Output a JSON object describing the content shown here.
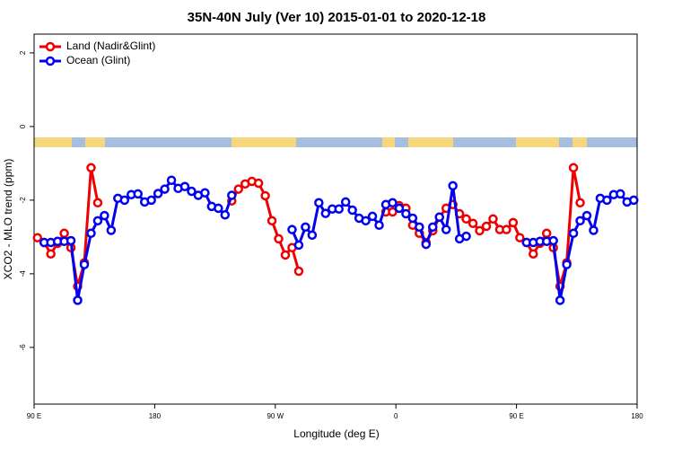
{
  "chart_data": {
    "type": "line",
    "title": "35N-40N July (Ver 10)   2015-01-01 to 2020-12-18",
    "xlabel": "Longitude (deg E)",
    "ylabel": "XCO2 - MLO trend (ppm)",
    "x": [
      92.5,
      97.5,
      102.5,
      107.5,
      112.5,
      117.5,
      122.5,
      127.5,
      132.5,
      137.5,
      142.5,
      147.5,
      152.5,
      157.5,
      162.5,
      167.5,
      172.5,
      177.5,
      182.5,
      187.5,
      192.5,
      197.5,
      202.5,
      207.5,
      212.5,
      217.5,
      222.5,
      227.5,
      232.5,
      237.5,
      242.5,
      247.5,
      252.5,
      257.5,
      262.5,
      267.5,
      272.5,
      277.5,
      282.5,
      287.5,
      292.5,
      297.5,
      302.5,
      307.5,
      312.5,
      317.5,
      322.5,
      327.5,
      332.5,
      337.5,
      342.5,
      347.5,
      352.5,
      357.5,
      362.5,
      367.5,
      372.5,
      377.5,
      382.5,
      387.5,
      392.5,
      397.5,
      402.5,
      407.5,
      412.5,
      417.5,
      422.5,
      427.5,
      432.5,
      437.5,
      442.5,
      447.5,
      452.5,
      457.5,
      462.5,
      467.5,
      472.5,
      477.5,
      482.5,
      487.5,
      492.5,
      497.5,
      502.5,
      507.5,
      512.5,
      517.5,
      522.5,
      527.5,
      532.5,
      537.5
    ],
    "series": [
      {
        "name": "Land (Nadir&Glint)",
        "color": "#ee0000",
        "values": [
          -3.02,
          -3.15,
          -3.46,
          -3.17,
          -2.9,
          -3.29,
          -4.34,
          -3.7,
          -1.12,
          -2.07,
          null,
          null,
          null,
          null,
          null,
          null,
          null,
          null,
          null,
          null,
          null,
          null,
          null,
          null,
          null,
          null,
          null,
          null,
          null,
          -2.02,
          -1.7,
          -1.56,
          -1.49,
          -1.54,
          -1.88,
          -2.56,
          -3.05,
          -3.49,
          -3.29,
          -3.93,
          null,
          null,
          null,
          null,
          null,
          null,
          null,
          null,
          null,
          null,
          null,
          null,
          -2.32,
          -2.32,
          -2.15,
          -2.22,
          -2.68,
          -2.9,
          -3.15,
          -2.83,
          -2.46,
          -2.22,
          -2.12,
          -2.37,
          -2.51,
          -2.63,
          -2.83,
          -2.71,
          -2.51,
          -2.8,
          -2.8,
          -2.61,
          -3.02,
          -3.15,
          -3.46,
          -3.17,
          -2.9,
          -3.29,
          -4.34,
          -3.7,
          -1.12,
          -2.07,
          null,
          null,
          null,
          null,
          null,
          null,
          null,
          null
        ]
      },
      {
        "name": "Ocean (Glint)",
        "color": "#0000ee",
        "values": [
          null,
          -3.15,
          -3.15,
          -3.12,
          -3.12,
          -3.1,
          -4.72,
          -3.75,
          -2.9,
          -2.56,
          -2.42,
          -2.82,
          -1.95,
          -2.0,
          -1.85,
          -1.83,
          -2.05,
          -2.0,
          -1.82,
          -1.7,
          -1.46,
          -1.68,
          -1.63,
          -1.76,
          -1.87,
          -1.8,
          -2.17,
          -2.22,
          -2.4,
          -1.87,
          null,
          null,
          null,
          null,
          null,
          null,
          null,
          null,
          -2.8,
          -3.22,
          -2.73,
          -2.95,
          -2.07,
          -2.36,
          -2.24,
          -2.24,
          -2.05,
          -2.27,
          -2.49,
          -2.56,
          -2.44,
          -2.68,
          -2.12,
          -2.07,
          -2.22,
          -2.37,
          -2.49,
          -2.73,
          -3.2,
          -2.73,
          -2.46,
          -2.8,
          -1.61,
          -3.05,
          -2.98,
          null,
          null,
          null,
          null,
          null,
          null,
          null,
          null,
          -3.15,
          -3.15,
          -3.12,
          -3.12,
          -3.1,
          -4.72,
          -3.75,
          -2.9,
          -2.56,
          -2.42,
          -2.82,
          -1.95,
          -2.0,
          -1.85,
          -1.83,
          -2.05,
          -2.0
        ]
      }
    ],
    "xlim": [
      90,
      540
    ],
    "xticks": [
      {
        "value": 90,
        "label": "90 E"
      },
      180,
      {
        "value": 270,
        "label": "90 W"
      },
      {
        "value": 360,
        "label": "0"
      },
      {
        "value": 450,
        "label": "90 E"
      },
      {
        "value": 540,
        "label": "180"
      }
    ],
    "ylim": [
      -7.54,
      2.51
    ],
    "yticks": [
      -6,
      -4,
      -2,
      0,
      2
    ],
    "legend": "top-left",
    "grid": false
  }
}
